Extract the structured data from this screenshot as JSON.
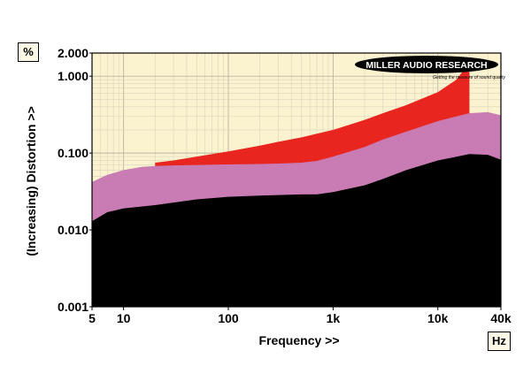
{
  "chart_data": {
    "type": "area",
    "title": "",
    "xlabel": "Frequency >>",
    "ylabel": "(Increasing) Distortion >>",
    "y_unit": "%",
    "x_unit": "Hz",
    "x_scale": "log",
    "y_scale": "log",
    "xlim": [
      5,
      40000
    ],
    "ylim": [
      0.001,
      2.0
    ],
    "x_ticks": [
      {
        "value": 5,
        "label": "5"
      },
      {
        "value": 10,
        "label": "10"
      },
      {
        "value": 100,
        "label": "100"
      },
      {
        "value": 1000,
        "label": "1k"
      },
      {
        "value": 10000,
        "label": "10k"
      },
      {
        "value": 40000,
        "label": "40k"
      }
    ],
    "y_ticks": [
      {
        "value": 2.0,
        "label": "2.000"
      },
      {
        "value": 1.0,
        "label": "1.000"
      },
      {
        "value": 0.1,
        "label": "0.100"
      },
      {
        "value": 0.01,
        "label": "0.010"
      },
      {
        "value": 0.001,
        "label": "0.001"
      }
    ],
    "grid": true,
    "series": [
      {
        "color": "#e8261f",
        "x": [
          20,
          30,
          50,
          100,
          200,
          300,
          500,
          1000,
          2000,
          3000,
          5000,
          10000,
          15000,
          20000
        ],
        "y": [
          0.075,
          0.08,
          0.09,
          0.105,
          0.125,
          0.14,
          0.16,
          0.2,
          0.27,
          0.33,
          0.42,
          0.62,
          0.9,
          1.5
        ]
      },
      {
        "color": "#c97bb3",
        "x": [
          5,
          7,
          10,
          15,
          20,
          30,
          50,
          100,
          200,
          300,
          500,
          700,
          1000,
          2000,
          3000,
          5000,
          10000,
          20000,
          30000,
          40000
        ],
        "y": [
          0.042,
          0.052,
          0.06,
          0.066,
          0.068,
          0.069,
          0.07,
          0.071,
          0.072,
          0.073,
          0.075,
          0.079,
          0.09,
          0.12,
          0.15,
          0.19,
          0.26,
          0.33,
          0.34,
          0.31
        ]
      },
      {
        "color": "#000000",
        "x": [
          5,
          7,
          10,
          20,
          50,
          100,
          200,
          500,
          700,
          1000,
          2000,
          3000,
          5000,
          10000,
          20000,
          30000,
          40000
        ],
        "y": [
          0.013,
          0.017,
          0.019,
          0.021,
          0.025,
          0.027,
          0.028,
          0.029,
          0.029,
          0.031,
          0.038,
          0.046,
          0.06,
          0.08,
          0.097,
          0.095,
          0.082
        ]
      }
    ]
  },
  "logo": {
    "text_bold": "MILLER AUDIO RESEARCH",
    "tagline": "Getting the measure of sound quality"
  }
}
